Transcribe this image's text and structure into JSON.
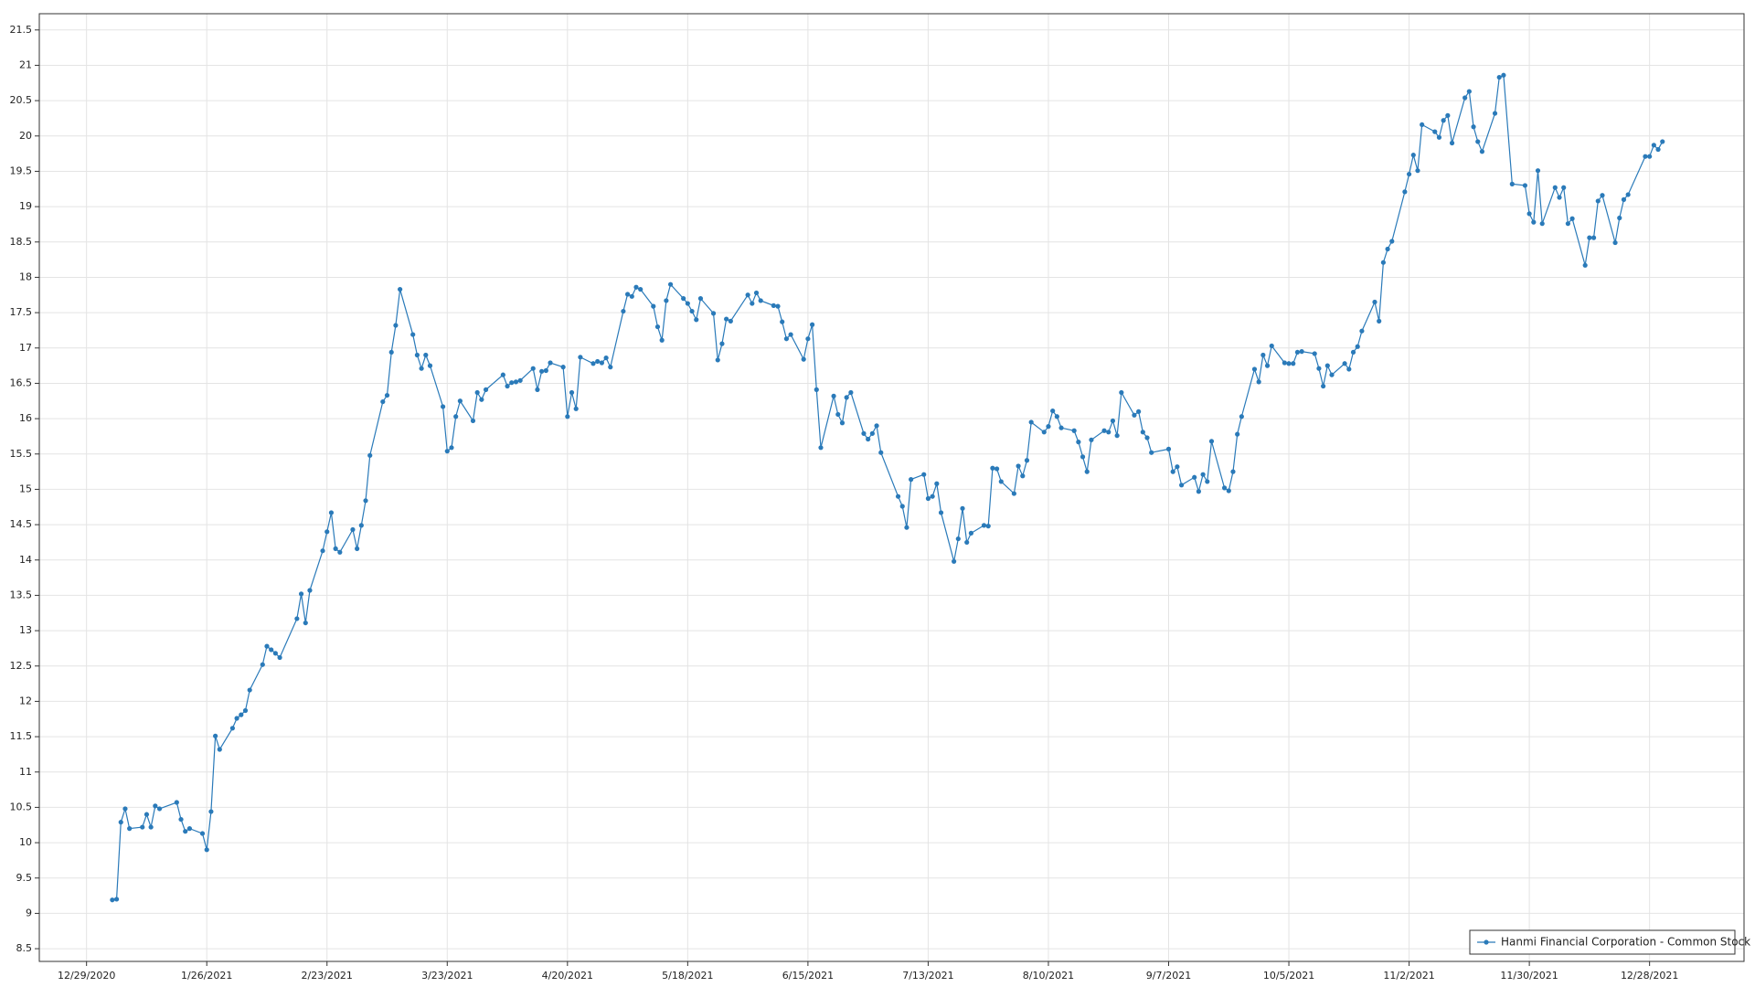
{
  "chart_data": {
    "type": "line",
    "x": [
      "1/4/2021",
      "1/5/2021",
      "1/6/2021",
      "1/7/2021",
      "1/8/2021",
      "1/11/2021",
      "1/12/2021",
      "1/13/2021",
      "1/14/2021",
      "1/15/2021",
      "1/19/2021",
      "1/20/2021",
      "1/21/2021",
      "1/22/2021",
      "1/25/2021",
      "1/26/2021",
      "1/27/2021",
      "1/28/2021",
      "1/29/2021",
      "2/1/2021",
      "2/2/2021",
      "2/3/2021",
      "2/4/2021",
      "2/5/2021",
      "2/8/2021",
      "2/9/2021",
      "2/10/2021",
      "2/11/2021",
      "2/12/2021",
      "2/16/2021",
      "2/17/2021",
      "2/18/2021",
      "2/19/2021",
      "2/22/2021",
      "2/23/2021",
      "2/24/2021",
      "2/25/2021",
      "2/26/2021",
      "3/1/2021",
      "3/2/2021",
      "3/3/2021",
      "3/4/2021",
      "3/5/2021",
      "3/8/2021",
      "3/9/2021",
      "3/10/2021",
      "3/11/2021",
      "3/12/2021",
      "3/15/2021",
      "3/16/2021",
      "3/17/2021",
      "3/18/2021",
      "3/19/2021",
      "3/22/2021",
      "3/23/2021",
      "3/24/2021",
      "3/25/2021",
      "3/26/2021",
      "3/29/2021",
      "3/30/2021",
      "3/31/2021",
      "4/1/2021",
      "4/5/2021",
      "4/6/2021",
      "4/7/2021",
      "4/8/2021",
      "4/9/2021",
      "4/12/2021",
      "4/13/2021",
      "4/14/2021",
      "4/15/2021",
      "4/16/2021",
      "4/19/2021",
      "4/20/2021",
      "4/21/2021",
      "4/22/2021",
      "4/23/2021",
      "4/26/2021",
      "4/27/2021",
      "4/28/2021",
      "4/29/2021",
      "4/30/2021",
      "5/3/2021",
      "5/4/2021",
      "5/5/2021",
      "5/6/2021",
      "5/7/2021",
      "5/10/2021",
      "5/11/2021",
      "5/12/2021",
      "5/13/2021",
      "5/14/2021",
      "5/17/2021",
      "5/18/2021",
      "5/19/2021",
      "5/20/2021",
      "5/21/2021",
      "5/24/2021",
      "5/25/2021",
      "5/26/2021",
      "5/27/2021",
      "5/28/2021",
      "6/1/2021",
      "6/2/2021",
      "6/3/2021",
      "6/4/2021",
      "6/7/2021",
      "6/8/2021",
      "6/9/2021",
      "6/10/2021",
      "6/11/2021",
      "6/14/2021",
      "6/15/2021",
      "6/16/2021",
      "6/17/2021",
      "6/18/2021",
      "6/21/2021",
      "6/22/2021",
      "6/23/2021",
      "6/24/2021",
      "6/25/2021",
      "6/28/2021",
      "6/29/2021",
      "6/30/2021",
      "7/1/2021",
      "7/2/2021",
      "7/6/2021",
      "7/7/2021",
      "7/8/2021",
      "7/9/2021",
      "7/12/2021",
      "7/13/2021",
      "7/14/2021",
      "7/15/2021",
      "7/16/2021",
      "7/19/2021",
      "7/20/2021",
      "7/21/2021",
      "7/22/2021",
      "7/23/2021",
      "7/26/2021",
      "7/27/2021",
      "7/28/2021",
      "7/29/2021",
      "7/30/2021",
      "8/2/2021",
      "8/3/2021",
      "8/4/2021",
      "8/5/2021",
      "8/6/2021",
      "8/9/2021",
      "8/10/2021",
      "8/11/2021",
      "8/12/2021",
      "8/13/2021",
      "8/16/2021",
      "8/17/2021",
      "8/18/2021",
      "8/19/2021",
      "8/20/2021",
      "8/23/2021",
      "8/24/2021",
      "8/25/2021",
      "8/26/2021",
      "8/27/2021",
      "8/30/2021",
      "8/31/2021",
      "9/1/2021",
      "9/2/2021",
      "9/3/2021",
      "9/7/2021",
      "9/8/2021",
      "9/9/2021",
      "9/10/2021",
      "9/13/2021",
      "9/14/2021",
      "9/15/2021",
      "9/16/2021",
      "9/17/2021",
      "9/20/2021",
      "9/21/2021",
      "9/22/2021",
      "9/23/2021",
      "9/24/2021",
      "9/27/2021",
      "9/28/2021",
      "9/29/2021",
      "9/30/2021",
      "10/1/2021",
      "10/4/2021",
      "10/5/2021",
      "10/6/2021",
      "10/7/2021",
      "10/8/2021",
      "10/11/2021",
      "10/12/2021",
      "10/13/2021",
      "10/14/2021",
      "10/15/2021",
      "10/18/2021",
      "10/19/2021",
      "10/20/2021",
      "10/21/2021",
      "10/22/2021",
      "10/25/2021",
      "10/26/2021",
      "10/27/2021",
      "10/28/2021",
      "10/29/2021",
      "11/1/2021",
      "11/2/2021",
      "11/3/2021",
      "11/4/2021",
      "11/5/2021",
      "11/8/2021",
      "11/9/2021",
      "11/10/2021",
      "11/11/2021",
      "11/12/2021",
      "11/15/2021",
      "11/16/2021",
      "11/17/2021",
      "11/18/2021",
      "11/19/2021",
      "11/22/2021",
      "11/23/2021",
      "11/24/2021",
      "11/26/2021",
      "11/29/2021",
      "11/30/2021",
      "12/1/2021",
      "12/2/2021",
      "12/3/2021",
      "12/6/2021",
      "12/7/2021",
      "12/8/2021",
      "12/9/2021",
      "12/10/2021",
      "12/13/2021",
      "12/14/2021",
      "12/15/2021",
      "12/16/2021",
      "12/17/2021",
      "12/20/2021",
      "12/21/2021",
      "12/22/2021",
      "12/23/2021",
      "12/27/2021",
      "12/28/2021",
      "12/29/2021",
      "12/30/2021",
      "12/31/2021"
    ],
    "series": [
      {
        "name": "Hanmi Financial Corporation - Common Stock",
        "color": "#2a7ab9",
        "values": [
          9.19,
          9.2,
          10.29,
          10.48,
          10.2,
          10.22,
          10.4,
          10.22,
          10.52,
          10.48,
          10.57,
          10.33,
          10.16,
          10.2,
          10.13,
          9.9,
          10.44,
          11.51,
          11.32,
          11.62,
          11.76,
          11.81,
          11.87,
          12.16,
          12.52,
          12.78,
          12.73,
          12.68,
          12.62,
          13.17,
          13.52,
          13.11,
          13.57,
          14.13,
          14.4,
          14.67,
          14.16,
          14.11,
          14.43,
          14.16,
          14.49,
          14.84,
          15.48,
          16.24,
          16.33,
          16.94,
          17.32,
          17.83,
          17.19,
          16.9,
          16.71,
          16.9,
          16.75,
          16.17,
          15.54,
          15.59,
          16.03,
          16.25,
          15.97,
          16.37,
          16.27,
          16.41,
          16.62,
          16.46,
          16.51,
          16.52,
          16.54,
          16.71,
          16.41,
          16.67,
          16.68,
          16.79,
          16.73,
          16.03,
          16.37,
          16.14,
          16.87,
          16.78,
          16.81,
          16.79,
          16.86,
          16.73,
          17.52,
          17.76,
          17.73,
          17.86,
          17.83,
          17.59,
          17.3,
          17.11,
          17.67,
          17.9,
          17.7,
          17.63,
          17.52,
          17.4,
          17.7,
          17.49,
          16.83,
          17.06,
          17.41,
          17.38,
          17.75,
          17.63,
          17.78,
          17.67,
          17.6,
          17.59,
          17.37,
          17.13,
          17.19,
          16.84,
          17.13,
          17.33,
          16.41,
          15.59,
          16.32,
          16.06,
          15.94,
          16.3,
          16.37,
          15.79,
          15.71,
          15.79,
          15.9,
          15.52,
          14.9,
          14.76,
          14.46,
          15.14,
          15.21,
          14.87,
          14.9,
          15.08,
          14.67,
          13.98,
          14.3,
          14.73,
          14.25,
          14.38,
          14.49,
          14.48,
          15.3,
          15.29,
          15.11,
          14.94,
          15.33,
          15.19,
          15.41,
          15.95,
          15.81,
          15.89,
          16.11,
          16.03,
          15.87,
          15.83,
          15.67,
          15.46,
          15.25,
          15.7,
          15.83,
          15.81,
          15.97,
          15.76,
          16.37,
          16.05,
          16.1,
          15.81,
          15.73,
          15.52,
          15.57,
          15.25,
          15.32,
          15.06,
          15.17,
          14.97,
          15.21,
          15.11,
          15.68,
          15.02,
          14.98,
          15.25,
          15.78,
          16.03,
          16.7,
          16.52,
          16.9,
          16.75,
          17.03,
          16.79,
          16.78,
          16.78,
          16.94,
          16.95,
          16.92,
          16.71,
          16.46,
          16.75,
          16.62,
          16.78,
          16.7,
          16.94,
          17.02,
          17.24,
          17.65,
          17.38,
          18.21,
          18.4,
          18.51,
          19.21,
          19.46,
          19.73,
          19.51,
          20.16,
          20.06,
          19.98,
          20.22,
          20.29,
          19.9,
          20.54,
          20.63,
          20.13,
          19.92,
          19.78,
          20.32,
          20.83,
          20.86,
          19.32,
          19.3,
          18.9,
          18.78,
          19.51,
          18.76,
          19.27,
          19.13,
          19.27,
          18.76,
          18.83,
          18.17,
          18.56,
          18.56,
          19.08,
          19.16,
          18.49,
          18.84,
          19.1,
          19.17,
          19.71,
          19.71,
          19.87,
          19.81,
          19.92
        ]
      }
    ],
    "xlim": [
      "12/18/2020",
      "1/19/2022"
    ],
    "xticks": [
      "12/29/2020",
      "1/26/2021",
      "2/23/2021",
      "3/23/2021",
      "4/20/2021",
      "5/18/2021",
      "6/15/2021",
      "7/13/2021",
      "8/10/2021",
      "9/7/2021",
      "10/5/2021",
      "11/2/2021",
      "11/30/2021",
      "12/28/2021"
    ],
    "ylim": [
      8.32,
      21.73
    ],
    "yticks": [
      8.5,
      9,
      9.5,
      10,
      10.5,
      11,
      11.5,
      12,
      12.5,
      13,
      13.5,
      14,
      14.5,
      15,
      15.5,
      16,
      16.5,
      17,
      17.5,
      18,
      18.5,
      19,
      19.5,
      20,
      20.5,
      21,
      21.5
    ],
    "grid": true,
    "legend": "lower right"
  }
}
